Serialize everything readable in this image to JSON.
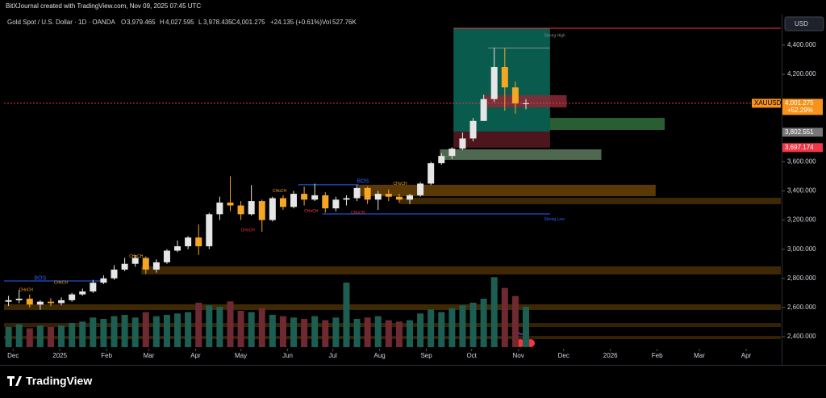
{
  "header": {
    "credit": "BitXJournal created with TradingView.com, Nov 09, 2025 07:45 UTC",
    "symbol": "Gold Spot / U.S. Dollar · 1D · OANDA",
    "o_label": "O",
    "open": "3,979.465",
    "h_label": "H",
    "high": "4,027.595",
    "l_label": "L",
    "low": "3,978.435",
    "c_label": "C",
    "close": "4,001.275",
    "change": "+24.135 (+0.61%)",
    "vol_label": "Vol",
    "volume": "527.76K"
  },
  "footer": {
    "brand": "TradingView"
  },
  "chart_data": {
    "type": "candlestick",
    "currency": "USD",
    "x": [
      3,
      10,
      17,
      24,
      31,
      38,
      45,
      52,
      59,
      66,
      73,
      80,
      87,
      94,
      101,
      108,
      115,
      122,
      129,
      136,
      143,
      150,
      157,
      164,
      171,
      178,
      185,
      192,
      199,
      206,
      213,
      220,
      227,
      234,
      241,
      248,
      255,
      262,
      269,
      276,
      283,
      290,
      297,
      304,
      311,
      318,
      325,
      332,
      339,
      346
    ],
    "open": [
      2640,
      2650,
      2660,
      2620,
      2640,
      2630,
      2650,
      2690,
      2710,
      2770,
      2800,
      2860,
      2900,
      2940,
      2860,
      2910,
      2990,
      3020,
      3080,
      3020,
      3240,
      3320,
      3300,
      3240,
      3330,
      3200,
      3350,
      3290,
      3380,
      3340,
      3370,
      3280,
      3340,
      3350,
      3420,
      3340,
      3380,
      3360,
      3340,
      3370,
      3450,
      3590,
      3640,
      3690,
      3760,
      3880,
      4030,
      4250,
      4110,
      4000
    ],
    "high": [
      2680,
      2720,
      2690,
      2650,
      2665,
      2670,
      2700,
      2730,
      2790,
      2820,
      2890,
      2940,
      2960,
      2950,
      2930,
      3000,
      3060,
      3090,
      3170,
      3250,
      3360,
      3500,
      3330,
      3440,
      3340,
      3360,
      3370,
      3400,
      3430,
      3450,
      3390,
      3360,
      3370,
      3440,
      3430,
      3400,
      3410,
      3380,
      3380,
      3460,
      3600,
      3660,
      3700,
      3800,
      3900,
      4060,
      4380,
      4380,
      4150,
      4030
    ],
    "low": [
      2610,
      2630,
      2600,
      2585,
      2610,
      2615,
      2640,
      2680,
      2700,
      2760,
      2790,
      2850,
      2880,
      2830,
      2840,
      2900,
      2980,
      3000,
      2960,
      3000,
      3200,
      3260,
      3200,
      3230,
      3120,
      3190,
      3270,
      3280,
      3300,
      3330,
      3250,
      3260,
      3300,
      3330,
      3310,
      3270,
      3330,
      3320,
      3310,
      3360,
      3440,
      3580,
      3620,
      3680,
      3740,
      3880,
      4010,
      3950,
      3930,
      3960
    ],
    "close": [
      2650,
      2660,
      2620,
      2640,
      2630,
      2650,
      2690,
      2710,
      2770,
      2800,
      2860,
      2900,
      2940,
      2860,
      2910,
      2990,
      3020,
      3080,
      3020,
      3240,
      3320,
      3300,
      3240,
      3330,
      3200,
      3350,
      3290,
      3380,
      3340,
      3370,
      3280,
      3340,
      3350,
      3420,
      3340,
      3380,
      3360,
      3340,
      3370,
      3450,
      3590,
      3640,
      3690,
      3760,
      3880,
      4030,
      4250,
      4110,
      4000,
      4001.275
    ],
    "volume": [
      150,
      170,
      140,
      160,
      150,
      160,
      180,
      190,
      220,
      210,
      230,
      240,
      220,
      260,
      230,
      240,
      250,
      260,
      330,
      310,
      300,
      340,
      270,
      260,
      290,
      240,
      230,
      220,
      210,
      230,
      200,
      220,
      480,
      210,
      220,
      230,
      200,
      190,
      200,
      250,
      280,
      260,
      290,
      310,
      330,
      360,
      520,
      440,
      380,
      300
    ],
    "up_color": "#e6e6e6",
    "down_color": "#f5a623",
    "vol_up_color": "#1d5e52",
    "vol_down_color": "#6e2a30",
    "xlim": [
      0,
      515
    ],
    "ylim": [
      2328,
      4599
    ],
    "vlim": [
      0,
      600
    ],
    "xticks": [
      {
        "value": 6,
        "label": "Dec"
      },
      {
        "value": 37,
        "label": "2025"
      },
      {
        "value": 68,
        "label": "Feb"
      },
      {
        "value": 96,
        "label": "Mar"
      },
      {
        "value": 127,
        "label": "Apr"
      },
      {
        "value": 157,
        "label": "May"
      },
      {
        "value": 188,
        "label": "Jun"
      },
      {
        "value": 218,
        "label": "Jul"
      },
      {
        "value": 249,
        "label": "Aug"
      },
      {
        "value": 280,
        "label": "Sep"
      },
      {
        "value": 310,
        "label": "Oct"
      },
      {
        "value": 341,
        "label": "Nov"
      },
      {
        "value": 371,
        "label": "Dec"
      },
      {
        "value": 402,
        "label": "2026"
      },
      {
        "value": 433,
        "label": "Feb"
      },
      {
        "value": 461,
        "label": "Mar"
      },
      {
        "value": 492,
        "label": "Apr"
      }
    ],
    "yticks": [
      {
        "value": 2400,
        "label": "2,400.000"
      },
      {
        "value": 2600,
        "label": "2,600.000"
      },
      {
        "value": 2800,
        "label": "2,800.000"
      },
      {
        "value": 3000,
        "label": "3,000.000"
      },
      {
        "value": 3200,
        "label": "3,200.000"
      },
      {
        "value": 3400,
        "label": "3,400.000"
      },
      {
        "value": 3600,
        "label": "3,600.000"
      },
      {
        "value": 3800,
        "label": "3,800.000"
      },
      {
        "value": 4000,
        "label": "4,000.000"
      },
      {
        "value": 4200,
        "label": "4,200.000"
      },
      {
        "value": 4400,
        "label": "4,400.000"
      }
    ],
    "zones": [
      {
        "x": [
          298,
          362
        ],
        "y": [
          3807,
          4516
        ],
        "color": "#0a6b5c"
      },
      {
        "x": [
          298,
          362
        ],
        "y": [
          3697,
          3807
        ],
        "color": "#5a1a22"
      },
      {
        "x": [
          318,
          373
        ],
        "y": [
          3973,
          4057
        ],
        "color": "#8a2a36"
      },
      {
        "x": [
          362,
          438
        ],
        "y": [
          3818,
          3901
        ],
        "color": "#2f6e3a"
      },
      {
        "x": [
          289,
          396
        ],
        "y": [
          3613,
          3685
        ],
        "color": "#5d7a5e"
      },
      {
        "x": [
          235,
          432
        ],
        "y": [
          3364,
          3442
        ],
        "color": "#6b4308"
      },
      {
        "x": [
          262,
          515
        ],
        "y": [
          3309,
          3353
        ],
        "color": "#4a3006"
      },
      {
        "x": [
          91,
          515
        ],
        "y": [
          2827,
          2882
        ],
        "color": "#4a3006"
      },
      {
        "x": [
          0,
          515
        ],
        "y": [
          2583,
          2622
        ],
        "color": "#4a3006"
      },
      {
        "x": [
          0,
          515
        ],
        "y": [
          2466,
          2494
        ],
        "color": "#3e2806"
      },
      {
        "x": [
          0,
          515
        ],
        "y": [
          2383,
          2405
        ],
        "color": "#3e2806"
      }
    ],
    "levels": [
      {
        "x": [
          298,
          515
        ],
        "y": 4516,
        "color": "#f23645"
      },
      {
        "x": [
          0,
          64
        ],
        "y": 2782,
        "color": "#2962ff"
      },
      {
        "x": [
          195,
          235
        ],
        "y": 3442,
        "color": "#2962ff"
      },
      {
        "x": [
          211,
          362
        ],
        "y": 3242,
        "color": "#2962ff"
      },
      {
        "x": [
          321,
          362
        ],
        "y": 4380,
        "color": "#888888"
      },
      {
        "x": [
          0,
          515
        ],
        "y": 4001.275,
        "color": "#f23645"
      }
    ],
    "annotations": [
      {
        "text": "BOS",
        "x": 20,
        "y": 2800,
        "color": "#2962ff"
      },
      {
        "text": "BOS",
        "x": 234,
        "y": 3465,
        "color": "#2962ff"
      },
      {
        "text": "CHoCH",
        "x": 10,
        "y": 2720,
        "color": "#f5a623"
      },
      {
        "text": "CHoCH",
        "x": 33,
        "y": 2770,
        "color": "#f5a623"
      },
      {
        "text": "CHoCH",
        "x": 83,
        "y": 2950,
        "color": "#f5a623"
      },
      {
        "text": "CHoCH",
        "x": 178,
        "y": 3400,
        "color": "#f5a623"
      },
      {
        "text": "CHoCH",
        "x": 258,
        "y": 3450,
        "color": "#f5a623"
      },
      {
        "text": "CHoCH",
        "x": 157,
        "y": 3130,
        "color": "#f23645"
      },
      {
        "text": "CHoCH",
        "x": 199,
        "y": 3260,
        "color": "#f23645"
      },
      {
        "text": "CHoCH",
        "x": 230,
        "y": 3250,
        "color": "#f23645"
      },
      {
        "text": "Strong High",
        "x": 358,
        "y": 4465,
        "color": "#888888"
      },
      {
        "text": "Strong Low",
        "x": 358,
        "y": 3205,
        "color": "#2962ff"
      }
    ],
    "price_tags": [
      {
        "value": 4001.275,
        "label": "4,001.275",
        "change": "+52.29%",
        "symbol": "XAUUSD",
        "color": "#f7931a"
      },
      {
        "value": 3802.551,
        "label": "3,802.551",
        "color": "#777777"
      },
      {
        "value": 3697.174,
        "label": "3,697.174",
        "color": "#f23645"
      }
    ]
  }
}
